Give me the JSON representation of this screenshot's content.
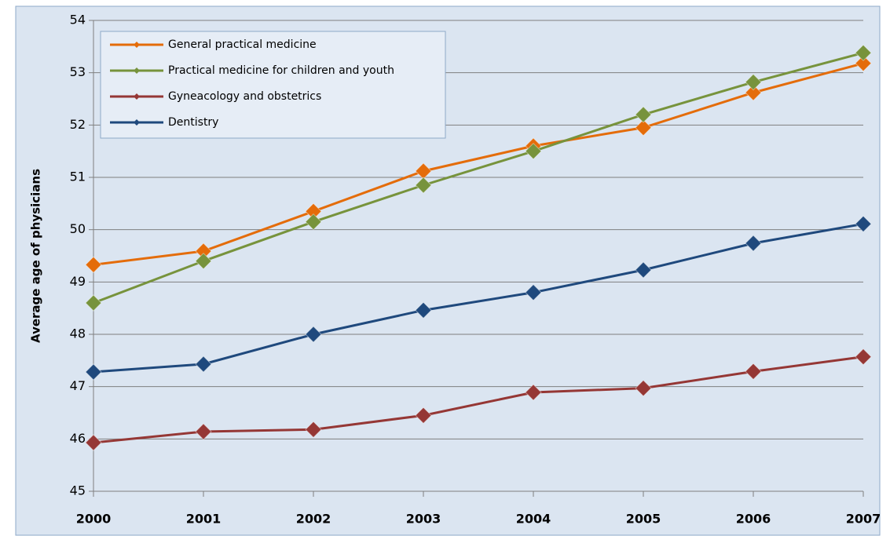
{
  "chart_data": {
    "type": "line",
    "y_label": "Average age of physicians",
    "x": [
      2000,
      2001,
      2002,
      2003,
      2004,
      2005,
      2006,
      2007
    ],
    "xlim": [
      2000,
      2007
    ],
    "xticks": [
      2000,
      2001,
      2002,
      2003,
      2004,
      2005,
      2006,
      2007
    ],
    "ylim": [
      45,
      54
    ],
    "yticks": [
      45,
      46,
      47,
      48,
      49,
      50,
      51,
      52,
      53,
      54
    ],
    "grid": true,
    "legend": "upper left",
    "series": [
      {
        "name": "General practical medicine",
        "color": "#e46c0a",
        "values": [
          49.33,
          49.59,
          50.35,
          51.12,
          51.6,
          51.95,
          52.62,
          53.18
        ]
      },
      {
        "name": "Practical medicine for children and youth",
        "color": "#77933c",
        "values": [
          48.6,
          49.4,
          50.15,
          50.85,
          51.5,
          52.2,
          52.82,
          53.38
        ]
      },
      {
        "name": "Gyneacology and obstetrics",
        "color": "#953735",
        "values": [
          45.93,
          46.14,
          46.18,
          46.45,
          46.89,
          46.97,
          47.29,
          47.57
        ]
      },
      {
        "name": "Dentistry",
        "color": "#1f497d",
        "values": [
          47.28,
          47.43,
          48.0,
          48.46,
          48.8,
          49.23,
          49.74,
          50.11
        ]
      }
    ]
  }
}
